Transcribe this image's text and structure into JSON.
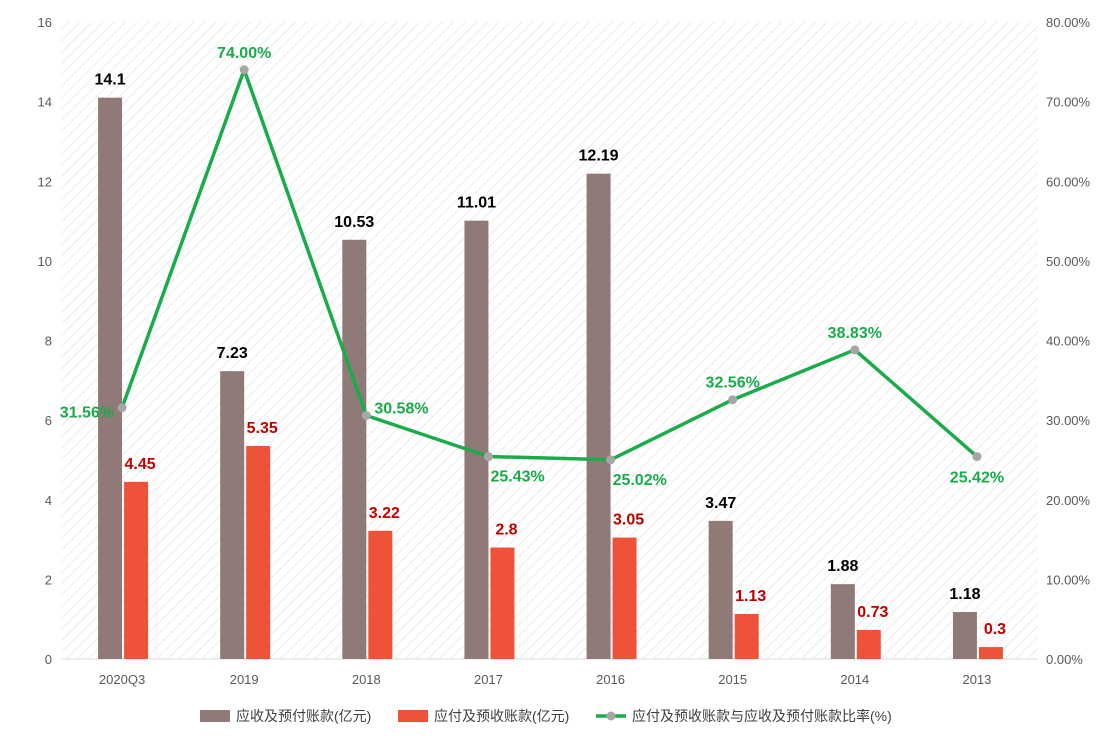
{
  "chart_data": {
    "type": "bar+line",
    "categories": [
      "2020Q3",
      "2019",
      "2018",
      "2017",
      "2016",
      "2015",
      "2014",
      "2013"
    ],
    "series": [
      {
        "name": "应收及预付账款(亿元)",
        "type": "bar",
        "axis": "left",
        "color": "#8f7a77",
        "label_color": "#000000",
        "values": [
          14.1,
          7.23,
          10.53,
          11.01,
          12.19,
          3.47,
          1.88,
          1.18
        ],
        "labels": [
          "14.1",
          "7.23",
          "10.53",
          "11.01",
          "12.19",
          "3.47",
          "1.88",
          "1.18"
        ]
      },
      {
        "name": "应付及预收账款(亿元)",
        "type": "bar",
        "axis": "left",
        "color": "#ee5239",
        "label_color": "#c00000",
        "values": [
          4.45,
          5.35,
          3.22,
          2.8,
          3.05,
          1.13,
          0.73,
          0.3
        ],
        "labels": [
          "4.45",
          "5.35",
          "3.22",
          "2.8",
          "3.05",
          "1.13",
          "0.73",
          "0.3"
        ]
      },
      {
        "name": "应付及预收账款与应收及预付账款比率(%)",
        "type": "line",
        "axis": "right",
        "color": "#1aab4b",
        "marker_color": "#a6a6a6",
        "label_color": "#1aab4b",
        "values": [
          31.56,
          74.0,
          30.58,
          25.43,
          25.02,
          32.56,
          38.83,
          25.42
        ],
        "labels": [
          "31.56%",
          "74.00%",
          "30.58%",
          "25.43%",
          "25.02%",
          "32.56%",
          "38.83%",
          "25.42%"
        ]
      }
    ],
    "y_left": {
      "range": [
        0,
        16
      ],
      "ticks": [
        "0",
        "2",
        "4",
        "6",
        "8",
        "10",
        "12",
        "14",
        "16"
      ]
    },
    "y_right": {
      "range": [
        0,
        80
      ],
      "ticks": [
        "0.00%",
        "10.00%",
        "20.00%",
        "30.00%",
        "40.00%",
        "50.00%",
        "60.00%",
        "70.00%",
        "80.00%"
      ]
    },
    "grid": false,
    "background": "diagonal hatch",
    "legend": "bottom"
  }
}
